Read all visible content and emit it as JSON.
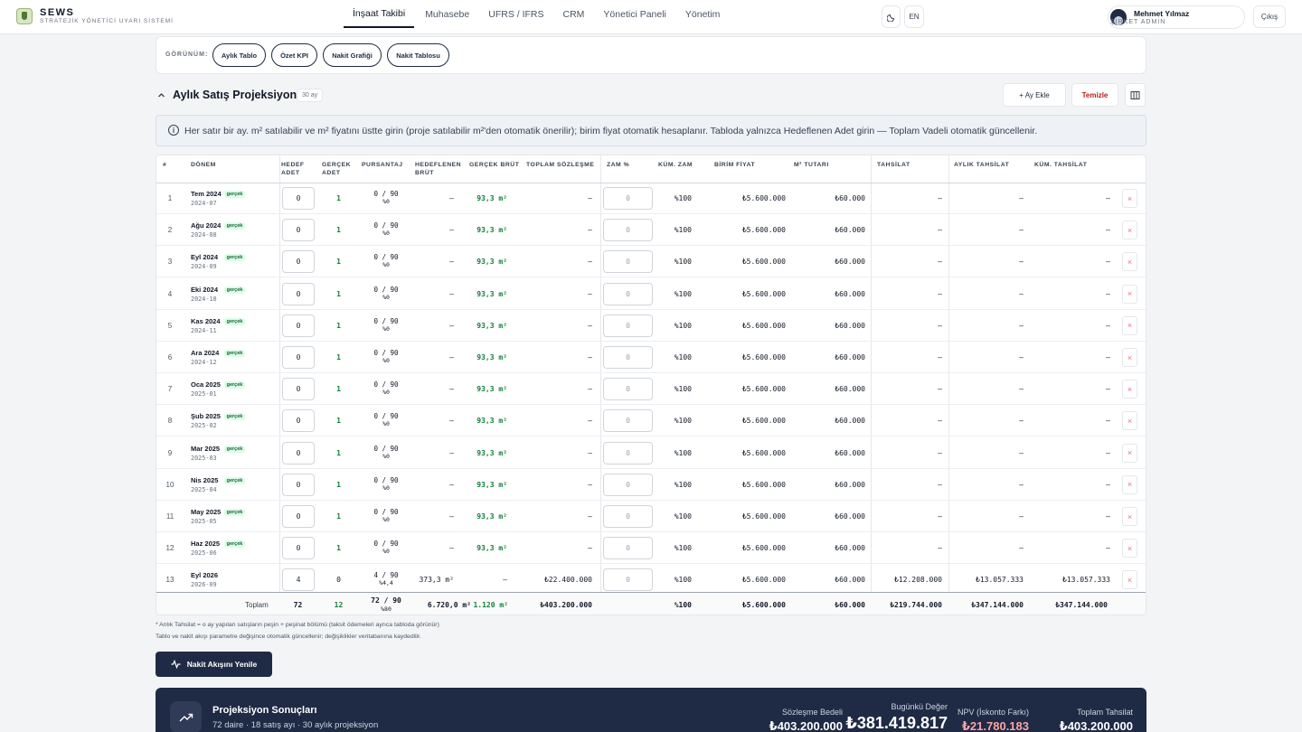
{
  "brand": {
    "title": "SEWS",
    "subtitle": "STRATEJİK YÖNETİCİ UYARI SİSTEMİ"
  },
  "nav": [
    "İnşaat Takibi",
    "Muhasebe",
    "UFRS / IFRS",
    "CRM",
    "Yönetici Paneli",
    "Yönetim"
  ],
  "lang": "EN",
  "user": {
    "name": "Mehmet Yılmaz",
    "role": "ŞİRKET ADMİN",
    "logout": "Çıkış"
  },
  "view": {
    "label": "GÖRÜNÜM:",
    "options": [
      "Aylık Tablo",
      "Özet KPI",
      "Nakit Grafiği",
      "Nakit Tablosu"
    ]
  },
  "section": {
    "title": "Aylık Satış Projeksiyonu",
    "badge": "30 ay",
    "add_month": "+ Ay Ekle",
    "clear": "Temizle"
  },
  "info": "Her satır bir ay. m² satılabilir ve m² fiyatını üstte girin (proje satılabilir m²'den otomatik önerilir); birim fiyat otomatik hesaplanır. Tabloda yalnızca Hedeflenen Adet girin — Toplam Vadeli otomatik güncellenir.",
  "headers": {
    "idx": "#",
    "period": "DÖNEM",
    "target1": "HEDEF",
    "target2": "ADET",
    "actual1": "GERÇEK",
    "actual2": "ADET",
    "share": "PURSANTAJ",
    "tgross1": "HEDEFLENEN",
    "tgross2": "BRÜT",
    "agross": "GERÇEK BRÜT",
    "contract": "TOPLAM SÖZLEŞME",
    "inc": "ZAM %",
    "cuminc": "KÜM. ZAM",
    "unit": "BİRİM FİYAT",
    "sqm": "M² TUTARI",
    "coll": "TAHSİLAT",
    "mcoll": "AYLIK TAHSİLAT",
    "ccoll": "KÜM. TAHSİLAT"
  },
  "tag": "gerçek",
  "rows": [
    {
      "i": "1",
      "p": "Tem 2024",
      "c": "2024-07",
      "t": "0",
      "a": "1",
      "s1": "0 / 90",
      "s2": "%0",
      "tg": "—",
      "ag": "93,3 m²",
      "ct": "—",
      "inc": "0",
      "ci": "%100",
      "u": "₺5.600.000",
      "m": "₺60.000",
      "col": "—",
      "mc": "—",
      "cc": "—",
      "real": true
    },
    {
      "i": "2",
      "p": "Ağu 2024",
      "c": "2024-08",
      "t": "0",
      "a": "1",
      "s1": "0 / 90",
      "s2": "%0",
      "tg": "—",
      "ag": "93,3 m²",
      "ct": "—",
      "inc": "0",
      "ci": "%100",
      "u": "₺5.600.000",
      "m": "₺60.000",
      "col": "—",
      "mc": "—",
      "cc": "—",
      "real": true
    },
    {
      "i": "3",
      "p": "Eyl 2024",
      "c": "2024-09",
      "t": "0",
      "a": "1",
      "s1": "0 / 90",
      "s2": "%0",
      "tg": "—",
      "ag": "93,3 m²",
      "ct": "—",
      "inc": "0",
      "ci": "%100",
      "u": "₺5.600.000",
      "m": "₺60.000",
      "col": "—",
      "mc": "—",
      "cc": "—",
      "real": true
    },
    {
      "i": "4",
      "p": "Eki 2024",
      "c": "2024-10",
      "t": "0",
      "a": "1",
      "s1": "0 / 90",
      "s2": "%0",
      "tg": "—",
      "ag": "93,3 m²",
      "ct": "—",
      "inc": "0",
      "ci": "%100",
      "u": "₺5.600.000",
      "m": "₺60.000",
      "col": "—",
      "mc": "—",
      "cc": "—",
      "real": true
    },
    {
      "i": "5",
      "p": "Kas 2024",
      "c": "2024-11",
      "t": "0",
      "a": "1",
      "s1": "0 / 90",
      "s2": "%0",
      "tg": "—",
      "ag": "93,3 m²",
      "ct": "—",
      "inc": "0",
      "ci": "%100",
      "u": "₺5.600.000",
      "m": "₺60.000",
      "col": "—",
      "mc": "—",
      "cc": "—",
      "real": true
    },
    {
      "i": "6",
      "p": "Ara 2024",
      "c": "2024-12",
      "t": "0",
      "a": "1",
      "s1": "0 / 90",
      "s2": "%0",
      "tg": "—",
      "ag": "93,3 m²",
      "ct": "—",
      "inc": "0",
      "ci": "%100",
      "u": "₺5.600.000",
      "m": "₺60.000",
      "col": "—",
      "mc": "—",
      "cc": "—",
      "real": true
    },
    {
      "i": "7",
      "p": "Oca 2025",
      "c": "2025-01",
      "t": "0",
      "a": "1",
      "s1": "0 / 90",
      "s2": "%0",
      "tg": "—",
      "ag": "93,3 m²",
      "ct": "—",
      "inc": "0",
      "ci": "%100",
      "u": "₺5.600.000",
      "m": "₺60.000",
      "col": "—",
      "mc": "—",
      "cc": "—",
      "real": true
    },
    {
      "i": "8",
      "p": "Şub 2025",
      "c": "2025-02",
      "t": "0",
      "a": "1",
      "s1": "0 / 90",
      "s2": "%0",
      "tg": "—",
      "ag": "93,3 m²",
      "ct": "—",
      "inc": "0",
      "ci": "%100",
      "u": "₺5.600.000",
      "m": "₺60.000",
      "col": "—",
      "mc": "—",
      "cc": "—",
      "real": true
    },
    {
      "i": "9",
      "p": "Mar 2025",
      "c": "2025-03",
      "t": "0",
      "a": "1",
      "s1": "0 / 90",
      "s2": "%0",
      "tg": "—",
      "ag": "93,3 m²",
      "ct": "—",
      "inc": "0",
      "ci": "%100",
      "u": "₺5.600.000",
      "m": "₺60.000",
      "col": "—",
      "mc": "—",
      "cc": "—",
      "real": true
    },
    {
      "i": "10",
      "p": "Nis 2025",
      "c": "2025-04",
      "t": "0",
      "a": "1",
      "s1": "0 / 90",
      "s2": "%0",
      "tg": "—",
      "ag": "93,3 m²",
      "ct": "—",
      "inc": "0",
      "ci": "%100",
      "u": "₺5.600.000",
      "m": "₺60.000",
      "col": "—",
      "mc": "—",
      "cc": "—",
      "real": true
    },
    {
      "i": "11",
      "p": "May 2025",
      "c": "2025-05",
      "t": "0",
      "a": "1",
      "s1": "0 / 90",
      "s2": "%0",
      "tg": "—",
      "ag": "93,3 m²",
      "ct": "—",
      "inc": "0",
      "ci": "%100",
      "u": "₺5.600.000",
      "m": "₺60.000",
      "col": "—",
      "mc": "—",
      "cc": "—",
      "real": true
    },
    {
      "i": "12",
      "p": "Haz 2025",
      "c": "2025-06",
      "t": "0",
      "a": "1",
      "s1": "0 / 90",
      "s2": "%0",
      "tg": "—",
      "ag": "93,3 m²",
      "ct": "—",
      "inc": "0",
      "ci": "%100",
      "u": "₺5.600.000",
      "m": "₺60.000",
      "col": "—",
      "mc": "—",
      "cc": "—",
      "real": true
    },
    {
      "i": "13",
      "p": "Eyl 2026",
      "c": "2026-09",
      "t": "4",
      "a": "0",
      "s1": "4 / 90",
      "s2": "%4,4",
      "tg": "373,3 m²",
      "ag": "—",
      "ct": "₺22.400.000",
      "inc": "0",
      "ci": "%100",
      "u": "₺5.600.000",
      "m": "₺60.000",
      "col": "₺12.208.000",
      "mc": "₺13.057.333",
      "cc": "₺13.057.333",
      "real": false
    }
  ],
  "totals": {
    "label": "Toplam",
    "t": "72",
    "a": "12",
    "s1": "72 / 90",
    "s2": "%80",
    "tg": "6.720,0 m²",
    "ag": "1.120 m²",
    "ct": "₺403.200.000",
    "ci": "%100",
    "u": "₺5.600.000",
    "m": "₺60.000",
    "col": "₺219.744.000",
    "mc": "₺347.144.000",
    "cc": "₺347.144.000"
  },
  "footnotes": [
    "* Anlık Tahsilat = o ay yapılan satışların peşin + peşinat bölümü (taksit ödemeleri ayrıca tabloda görünür)",
    "Tablo ve nakit akışı parametre değişince otomatik güncellenir; değişiklikler veritabanına kaydedilir."
  ],
  "cash_button": "Nakit Akışını Yenile",
  "results": {
    "title": "Projeksiyon Sonuçları",
    "subtitle": "72 daire · 18 satış ayı · 30 aylık projeksiyon",
    "kpis": [
      {
        "label": "Sözleşme Bedeli",
        "value": "₺403.200.000"
      },
      {
        "label": "Bugünkü Değer",
        "value": "₺381.419.817"
      },
      {
        "label": "NPV (İskonto Farkı)",
        "value": "₺21.780.183"
      },
      {
        "label": "Toplam Tahsilat",
        "value": "₺403.200.000"
      }
    ]
  }
}
